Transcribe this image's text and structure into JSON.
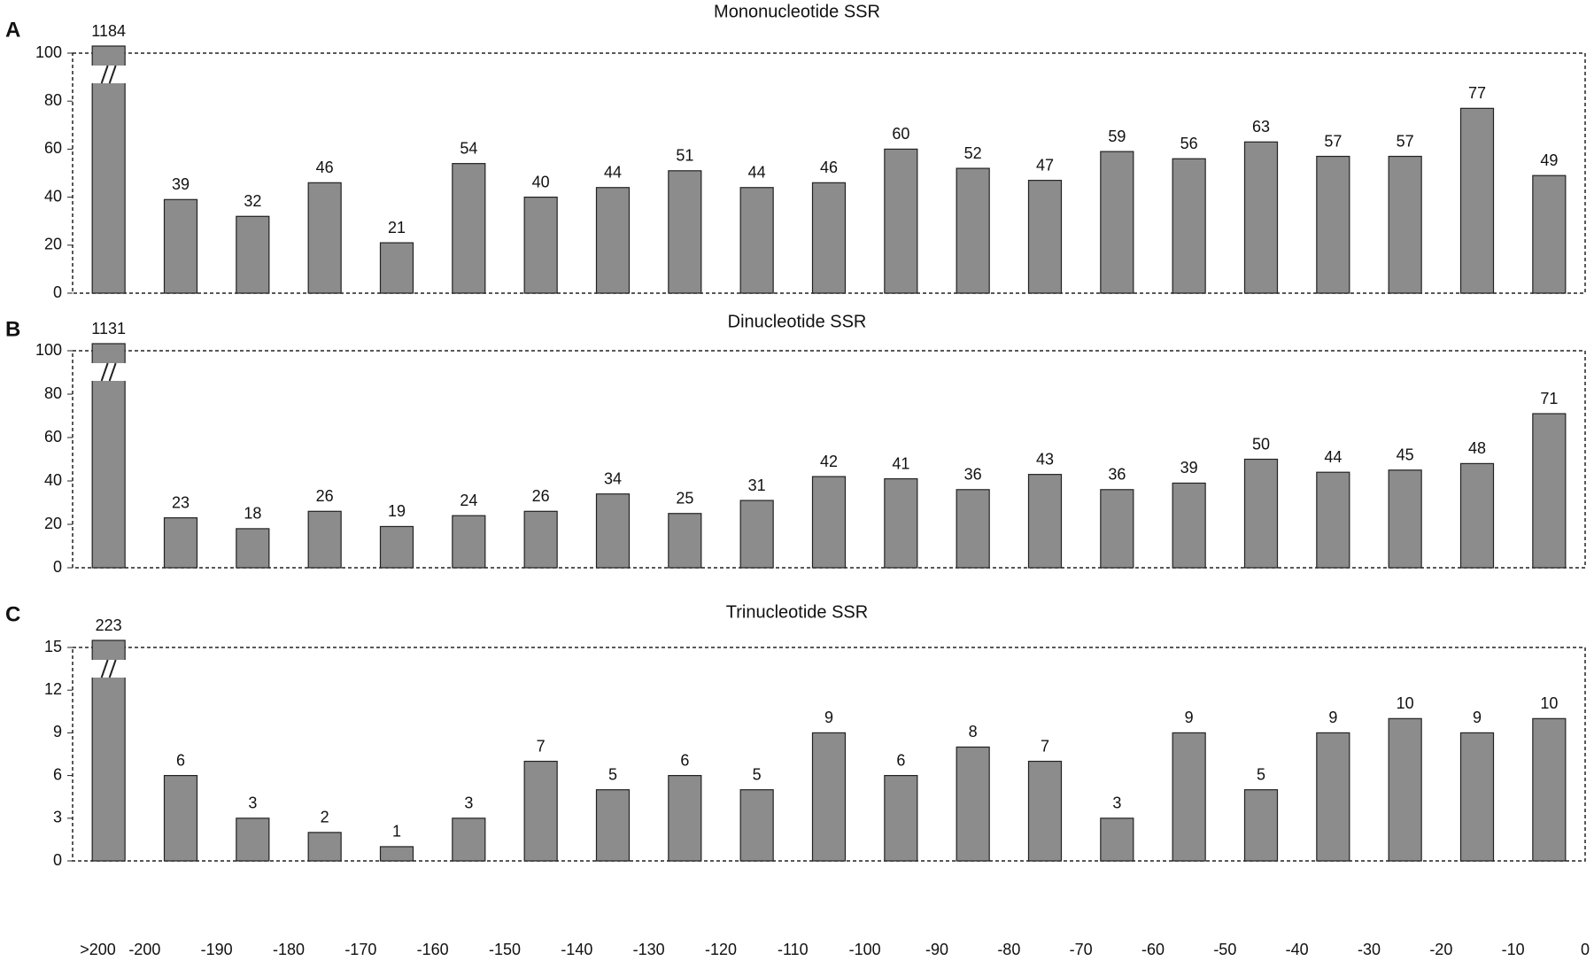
{
  "chart_data": [
    {
      "type": "bar",
      "label": "A",
      "title": "Mononucleotide SSR",
      "color": "#8c8c8c",
      "axis_break": true,
      "values": [
        1184,
        39,
        32,
        46,
        21,
        54,
        40,
        44,
        51,
        44,
        46,
        60,
        52,
        47,
        59,
        56,
        63,
        57,
        57,
        77,
        49
      ],
      "ylim": [
        0,
        100
      ],
      "yticks": [
        0,
        20,
        40,
        60,
        80,
        100
      ]
    },
    {
      "type": "bar",
      "label": "B",
      "title": "Dinucleotide SSR",
      "color": "#8c8c8c",
      "axis_break": true,
      "values": [
        1131,
        23,
        18,
        26,
        19,
        24,
        26,
        34,
        25,
        31,
        42,
        41,
        36,
        43,
        36,
        39,
        50,
        44,
        45,
        48,
        71
      ],
      "ylim": [
        0,
        100
      ],
      "yticks": [
        0,
        20,
        40,
        60,
        80,
        100
      ]
    },
    {
      "type": "bar",
      "label": "C",
      "title": "Trinucleotide SSR",
      "color": "#8c8c8c",
      "axis_break": true,
      "values": [
        223,
        6,
        3,
        2,
        1,
        3,
        7,
        5,
        6,
        5,
        9,
        6,
        8,
        7,
        3,
        9,
        5,
        9,
        10,
        9,
        10
      ],
      "ylim": [
        0,
        15
      ],
      "yticks": [
        0,
        3,
        6,
        9,
        12,
        15
      ]
    }
  ],
  "x_labels": [
    ">200",
    "-200",
    "-190",
    "-180",
    "-170",
    "-160",
    "-150",
    "-140",
    "-130",
    "-120",
    "-110",
    "-100",
    "-90",
    "-80",
    "-70",
    "-60",
    "-50",
    "-40",
    "-30",
    "-20",
    "-10",
    "0"
  ]
}
